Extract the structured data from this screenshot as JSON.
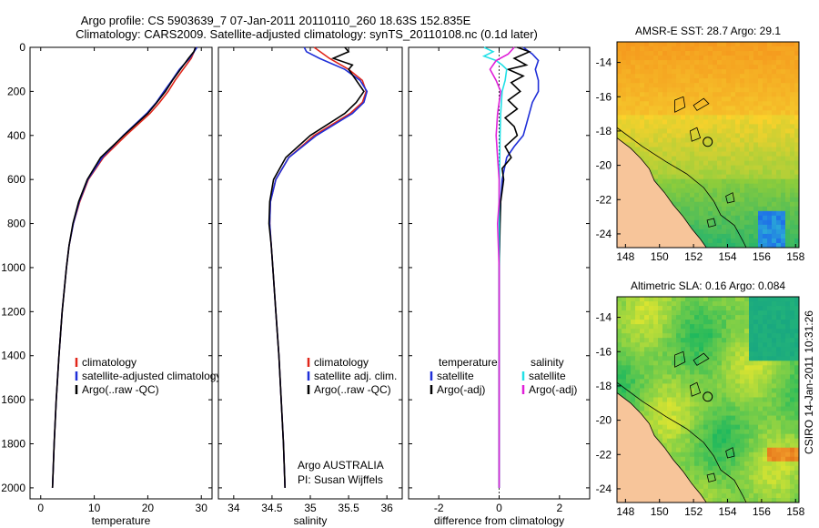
{
  "title": {
    "line1": "Argo profile: CS 5903639_7 07-Jan-2011 20110110_260 18.63S 152.835E",
    "line2": "Climatology: CARS2009. Satellite-adjusted climatology: synTS_20110108.nc (0.1d later)"
  },
  "colors": {
    "climatology": "#e0261a",
    "satellite": "#1f2fd8",
    "argo": "#000000",
    "salinity_satellite": "#22e0e6",
    "salinity_argo": "#e020d8",
    "land": "#f7c59a"
  },
  "depth_axis": {
    "range": [
      0,
      2050
    ],
    "ticks": [
      "0",
      "200",
      "400",
      "600",
      "800",
      "1000",
      "1200",
      "1400",
      "1600",
      "1800",
      "2000"
    ],
    "tick_values": [
      0,
      200,
      400,
      600,
      800,
      1000,
      1200,
      1400,
      1600,
      1800,
      2000
    ]
  },
  "chart_data": [
    {
      "type": "line",
      "id": "temperature",
      "xlabel": "temperature",
      "xlim": [
        -2,
        32
      ],
      "xticks": [
        0,
        10,
        20,
        30
      ],
      "xtick_labels": [
        "0",
        "10",
        "20",
        "30"
      ],
      "legend": [
        "climatology",
        "satellite-adjusted climatology",
        "Argo(..raw -QC)"
      ],
      "series": [
        {
          "name": "climatology",
          "color_key": "climatology",
          "depth": [
            0,
            50,
            100,
            150,
            200,
            250,
            300,
            400,
            500,
            600,
            700,
            800,
            900,
            1000,
            1200,
            1400,
            1600,
            1800,
            2000
          ],
          "values": [
            29.0,
            28.1,
            26.6,
            25.1,
            23.8,
            22.2,
            20.4,
            15.9,
            11.7,
            8.9,
            7.3,
            6.1,
            5.3,
            4.8,
            4.0,
            3.4,
            2.9,
            2.5,
            2.2
          ]
        },
        {
          "name": "satellite-adjusted climatology",
          "color_key": "satellite",
          "depth": [
            0,
            50,
            100,
            150,
            200,
            250,
            300,
            400,
            500,
            600,
            700,
            800,
            900,
            1000,
            1200,
            1400,
            1600,
            1800,
            2000
          ],
          "values": [
            29.2,
            27.8,
            25.9,
            24.5,
            23.0,
            21.6,
            19.8,
            15.4,
            11.5,
            8.8,
            7.2,
            6.1,
            5.3,
            4.8,
            4.0,
            3.4,
            2.9,
            2.5,
            2.2
          ]
        },
        {
          "name": "Argo(..raw -QC)",
          "color_key": "argo",
          "depth": [
            0,
            20,
            50,
            100,
            150,
            200,
            250,
            300,
            400,
            500,
            600,
            700,
            800,
            900,
            1000,
            1200,
            1400,
            1600,
            1800,
            2000
          ],
          "values": [
            28.9,
            28.6,
            27.6,
            26.1,
            24.6,
            23.3,
            21.7,
            20.0,
            15.5,
            11.2,
            8.7,
            7.1,
            6.0,
            5.3,
            4.8,
            4.0,
            3.4,
            2.9,
            2.5,
            2.2
          ]
        }
      ]
    },
    {
      "type": "line",
      "id": "salinity",
      "xlabel": "salinity",
      "xlim": [
        33.8,
        36.2
      ],
      "xticks": [
        34,
        34.5,
        35,
        35.5,
        36
      ],
      "xtick_labels": [
        "34",
        "34.5",
        "35",
        "35.5",
        "36"
      ],
      "legend": [
        "climatology",
        "satellite adj. clim.",
        "Argo(..raw -QC)"
      ],
      "annotation": [
        "Argo AUSTRALIA",
        "PI: Susan Wijffels"
      ],
      "series": [
        {
          "name": "climatology",
          "color_key": "climatology",
          "depth": [
            0,
            50,
            100,
            150,
            200,
            250,
            300,
            400,
            500,
            600,
            700,
            800,
            900,
            1000,
            1200,
            1400,
            1600,
            1800,
            2000
          ],
          "values": [
            35.05,
            35.25,
            35.5,
            35.68,
            35.73,
            35.68,
            35.52,
            35.05,
            34.72,
            34.55,
            34.48,
            34.47,
            34.49,
            34.51,
            34.55,
            34.59,
            34.62,
            34.65,
            34.67
          ]
        },
        {
          "name": "satellite adj. clim.",
          "color_key": "satellite",
          "depth": [
            0,
            20,
            50,
            100,
            150,
            200,
            250,
            300,
            400,
            500,
            600,
            700,
            800,
            900,
            1000,
            1200,
            1400,
            1600,
            1800,
            2000
          ],
          "values": [
            34.92,
            34.95,
            35.12,
            35.45,
            35.65,
            35.74,
            35.7,
            35.55,
            35.08,
            34.72,
            34.55,
            34.48,
            34.47,
            34.49,
            34.51,
            34.55,
            34.59,
            34.62,
            34.65,
            34.67
          ]
        },
        {
          "name": "Argo(..raw -QC)",
          "color_key": "argo",
          "depth": [
            0,
            20,
            50,
            80,
            100,
            150,
            200,
            250,
            300,
            400,
            500,
            600,
            700,
            800,
            900,
            1000,
            1200,
            1400,
            1600,
            1800,
            2000
          ],
          "values": [
            35.45,
            35.5,
            35.3,
            35.55,
            35.5,
            35.6,
            35.7,
            35.6,
            35.45,
            35.0,
            34.68,
            34.52,
            34.47,
            34.46,
            34.49,
            34.51,
            34.55,
            34.59,
            34.62,
            34.65,
            34.67
          ]
        }
      ]
    },
    {
      "type": "line",
      "id": "difference",
      "xlabel": "difference from climatology",
      "xlim": [
        -3,
        3
      ],
      "xticks": [
        -2,
        0,
        2
      ],
      "xtick_labels": [
        "-2",
        "0",
        "2"
      ],
      "legend_temperature_title": "temperature",
      "legend_temperature": [
        "satellite",
        "Argo(-adj)"
      ],
      "legend_salinity_title": "salinity",
      "legend_salinity": [
        "satellite",
        "Argo(-adj)"
      ],
      "series": [
        {
          "name": "temperature satellite",
          "color_key": "satellite",
          "depth": [
            0,
            30,
            60,
            100,
            150,
            200,
            250,
            300,
            350,
            400,
            450,
            500,
            600,
            700,
            800,
            1000,
            1500,
            2000
          ],
          "values": [
            0.8,
            1.1,
            1.3,
            1.2,
            1.3,
            1.3,
            1.1,
            1.0,
            0.9,
            0.8,
            0.5,
            0.25,
            0.1,
            0.05,
            0.02,
            0.0,
            0.0,
            0.0
          ]
        },
        {
          "name": "temperature Argo(-adj)",
          "color_key": "argo",
          "depth": [
            0,
            20,
            50,
            80,
            100,
            130,
            160,
            200,
            240,
            280,
            320,
            360,
            400,
            450,
            500,
            550,
            600,
            700,
            800,
            1000,
            1500,
            2000
          ],
          "values": [
            0.6,
            1.0,
            0.5,
            0.9,
            0.3,
            0.8,
            0.4,
            0.7,
            0.3,
            0.6,
            0.2,
            0.5,
            0.6,
            0.2,
            0.4,
            0.1,
            0.15,
            0.05,
            0.03,
            0.0,
            0.0,
            0.0
          ]
        },
        {
          "name": "salinity satellite",
          "color_key": "salinity_satellite",
          "depth": [
            0,
            20,
            40,
            60,
            80,
            100,
            150,
            200,
            300,
            400,
            500,
            700,
            1000,
            1500,
            2000
          ],
          "values": [
            -0.5,
            -0.2,
            -0.5,
            -0.1,
            0.1,
            0.25,
            0.2,
            0.1,
            0.05,
            0.03,
            0.02,
            0.0,
            0.0,
            0.0,
            0.0
          ]
        },
        {
          "name": "salinity Argo(-adj)",
          "color_key": "salinity_argo",
          "depth": [
            0,
            30,
            60,
            100,
            150,
            200,
            300,
            400,
            500,
            600,
            700,
            800,
            1000,
            1500,
            2000
          ],
          "values": [
            0.5,
            0.3,
            -0.1,
            -0.3,
            -0.1,
            0.05,
            -0.05,
            -0.1,
            -0.05,
            0.0,
            0.0,
            -0.05,
            0.0,
            0.0,
            0.0
          ]
        }
      ]
    },
    {
      "type": "heatmap",
      "id": "sst",
      "title": "AMSR-E SST: 28.7 Argo: 29.1",
      "xlim": [
        147.5,
        158.2
      ],
      "ylim": [
        -24.8,
        -12.8
      ],
      "xticks": [
        148,
        150,
        152,
        154,
        156,
        158
      ],
      "xtick_labels": [
        "148",
        "150",
        "152",
        "154",
        "156",
        "158"
      ],
      "yticks": [
        -14,
        -16,
        -18,
        -20,
        -22,
        -24
      ],
      "ytick_labels": [
        "-14",
        "-16",
        "-18",
        "-20",
        "-22",
        "-24"
      ],
      "argo_position": [
        152.835,
        -18.63
      ]
    },
    {
      "type": "heatmap",
      "id": "sla",
      "title": "Altimetric SLA: 0.16 Argo: 0.084",
      "xlim": [
        147.5,
        158.2
      ],
      "ylim": [
        -24.8,
        -12.8
      ],
      "xticks": [
        148,
        150,
        152,
        154,
        156,
        158
      ],
      "xtick_labels": [
        "148",
        "150",
        "152",
        "154",
        "156",
        "158"
      ],
      "yticks": [
        -14,
        -16,
        -18,
        -20,
        -22,
        -24
      ],
      "ytick_labels": [
        "-14",
        "-16",
        "-18",
        "-20",
        "-22",
        "-24"
      ],
      "argo_position": [
        152.835,
        -18.63
      ]
    }
  ],
  "footer_stamp": "CSIRO 14-Jan-2011 10:31:26"
}
